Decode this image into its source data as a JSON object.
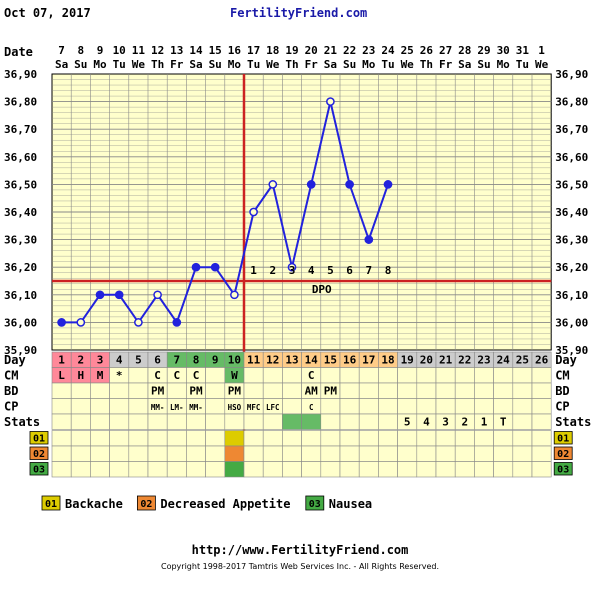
{
  "header": {
    "date": "Oct 07, 2017",
    "brand": "FertilityFriend.com"
  },
  "footer": {
    "url": "http://www.FertilityFriend.com",
    "copyright": "Copyright 1998-2017 Tamtris Web Services Inc. - All Rights Reserved."
  },
  "labels": {
    "date": "Date",
    "day": "Day",
    "cm": "CM",
    "bd": "BD",
    "cp": "CP",
    "stats": "Stats",
    "dpo": "DPO"
  },
  "colors": {
    "plot_bg": "#ffffcc",
    "grid": "#888888",
    "line": "#2222dd",
    "coverline": "#cc2222",
    "period": "#ff8899",
    "fertile": "#66bb66",
    "luteal": "#ffcc88",
    "day_gray": "#cccccc",
    "symptom_yellow": "#ddcc00",
    "symptom_orange": "#ee8833",
    "symptom_green": "#44aa44"
  },
  "chart_data": {
    "type": "line",
    "title": "",
    "ylim": [
      35.9,
      36.9
    ],
    "ytick_labels": [
      "35,90",
      "36,00",
      "36,10",
      "36,20",
      "36,30",
      "36,40",
      "36,50",
      "36,60",
      "36,70",
      "36,80",
      "36,90"
    ],
    "dates": [
      "7",
      "8",
      "9",
      "10",
      "11",
      "12",
      "13",
      "14",
      "15",
      "16",
      "17",
      "18",
      "19",
      "20",
      "21",
      "22",
      "23",
      "24",
      "25",
      "26",
      "27",
      "28",
      "29",
      "30",
      "31",
      "1"
    ],
    "weekdays": [
      "Sa",
      "Su",
      "Mo",
      "Tu",
      "We",
      "Th",
      "Fr",
      "Sa",
      "Su",
      "Mo",
      "Tu",
      "We",
      "Th",
      "Fr",
      "Sa",
      "Su",
      "Mo",
      "Tu",
      "We",
      "Th",
      "Fr",
      "Sa",
      "Su",
      "Mo",
      "Tu",
      "We"
    ],
    "cycle_days": [
      "1",
      "2",
      "3",
      "4",
      "5",
      "6",
      "7",
      "8",
      "9",
      "10",
      "11",
      "12",
      "13",
      "14",
      "15",
      "16",
      "17",
      "18",
      "19",
      "20",
      "21",
      "22",
      "23",
      "24",
      "25",
      "26"
    ],
    "temps": [
      36.0,
      36.0,
      36.1,
      36.1,
      36.0,
      36.1,
      36.0,
      36.2,
      36.2,
      36.1,
      36.4,
      36.5,
      36.2,
      36.5,
      36.8,
      36.5,
      36.3,
      36.5
    ],
    "open_marker_days": [
      2,
      5,
      6,
      10,
      11,
      12,
      13,
      15
    ],
    "coverline": 36.15,
    "ovulation_day": 10,
    "dpo_labels": [
      "1",
      "2",
      "3",
      "4",
      "5",
      "6",
      "7",
      "8"
    ],
    "cm_row": [
      "L",
      "H",
      "M",
      "*",
      "",
      "C",
      "C",
      "C",
      "",
      "W",
      "",
      "",
      "",
      "C",
      "",
      "",
      "",
      "",
      "",
      "",
      "",
      "",
      "",
      "",
      "",
      ""
    ],
    "bd_row": [
      "",
      "",
      "",
      "",
      "",
      "PM",
      "",
      "PM",
      "",
      "PM",
      "",
      "",
      "",
      "AM",
      "PM",
      "",
      "",
      "",
      "",
      "",
      "",
      "",
      "",
      "",
      "",
      ""
    ],
    "cp_row": [
      "",
      "",
      "",
      "",
      "",
      "MM-",
      "LM-",
      "MM-",
      "",
      "HSO",
      "MFC",
      "LFC",
      "",
      "C",
      "",
      "",
      "",
      "",
      "",
      "",
      "",
      "",
      "",
      "",
      "",
      ""
    ],
    "stats_row": [
      "",
      "",
      "",
      "",
      "",
      "",
      "",
      "",
      "",
      "",
      "",
      "",
      "",
      "",
      "",
      "",
      "",
      "",
      "5",
      "4",
      "3",
      "2",
      "1",
      "T",
      "",
      ""
    ],
    "cp_green_days": [
      13,
      14
    ],
    "symptom_rows": [
      {
        "code": "01",
        "days": [
          10
        ]
      },
      {
        "code": "02",
        "days": [
          10
        ]
      },
      {
        "code": "03",
        "days": [
          10
        ]
      }
    ],
    "legend": [
      {
        "code": "01",
        "name": "Backache"
      },
      {
        "code": "02",
        "name": "Decreased Appetite"
      },
      {
        "code": "03",
        "name": "Nausea"
      }
    ]
  }
}
